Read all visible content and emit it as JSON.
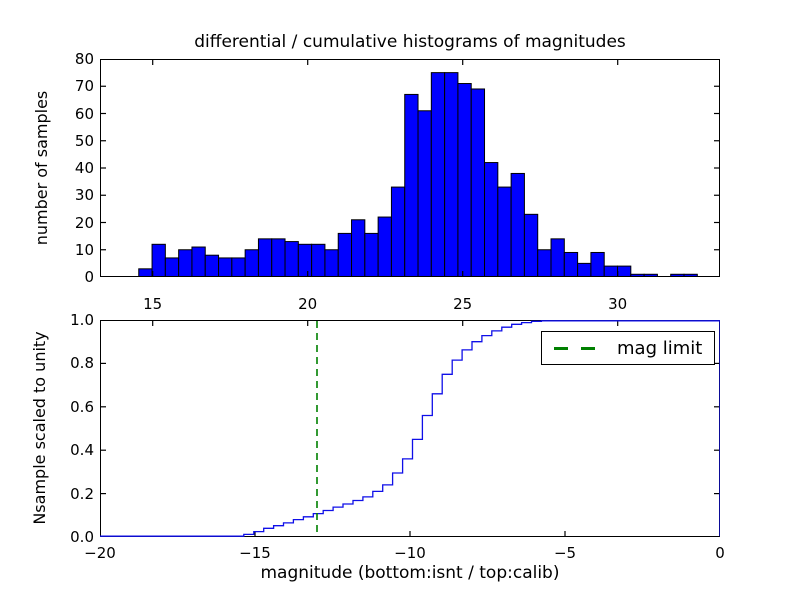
{
  "figure": {
    "background_color": "#ffffff",
    "accent_blue": "#0000ff",
    "accent_green": "#008000"
  },
  "chart_data": [
    {
      "type": "bar",
      "subtype": "differential histogram (top subplot)",
      "title": "differential / cumulative histograms of magnitudes",
      "xlabel": "",
      "ylabel": "number of samples",
      "x_axis_scale": "calib magnitude",
      "xlim": [
        13.3,
        33.3
      ],
      "ylim": [
        0,
        80
      ],
      "grid": false,
      "xticks": {
        "values": [
          15,
          20,
          25,
          30
        ],
        "labels": [
          "15",
          "20",
          "25",
          "30"
        ]
      },
      "yticks": {
        "values": [
          0,
          10,
          20,
          30,
          40,
          50,
          60,
          70,
          80
        ],
        "labels": [
          "0",
          "10",
          "20",
          "30",
          "40",
          "50",
          "60",
          "70",
          "80"
        ]
      },
      "bin_start": 14.55,
      "bin_width": 0.429,
      "bar_fill_color": "#0000ff",
      "bar_edge_color": "#000000",
      "values": [
        3,
        12,
        7,
        10,
        11,
        8,
        7,
        7,
        10,
        14,
        14,
        13,
        12,
        12,
        10,
        16,
        21,
        16,
        22,
        33,
        67,
        61,
        75,
        75,
        71,
        69,
        42,
        33,
        38,
        23,
        10,
        14,
        9,
        5,
        9,
        4,
        4,
        1,
        1,
        0,
        1,
        1
      ]
    },
    {
      "type": "line",
      "subtype": "cumulative step histogram scaled to unity (bottom subplot)",
      "xlabel": "magnitude (bottom:isnt / top:calib)",
      "ylabel": "Nsample scaled to unity",
      "x_axis_scale": "isnt magnitude",
      "xlim": [
        -20,
        0
      ],
      "ylim": [
        0.0,
        1.0
      ],
      "grid": false,
      "xticks": {
        "values": [
          -20,
          -15,
          -10,
          -5,
          0
        ],
        "labels": [
          "−20",
          "−15",
          "−10",
          "−5",
          "0"
        ]
      },
      "yticks": {
        "values": [
          0.0,
          0.2,
          0.4,
          0.6,
          0.8,
          1.0
        ],
        "labels": [
          "0.0",
          "0.2",
          "0.4",
          "0.6",
          "0.8",
          "1.0"
        ]
      },
      "top_xticks": {
        "values": [
          15,
          20,
          25,
          30
        ],
        "labels": [
          "15",
          "20",
          "25",
          "30"
        ],
        "scale": "calib",
        "xlim": [
          13.3,
          33.3
        ]
      },
      "line_color": "#0f0fe8",
      "curve_start": [
        -20,
        0.0
      ],
      "steps": [
        [
          -15.36,
          0.012
        ],
        [
          -15.04,
          0.025
        ],
        [
          -14.72,
          0.04
        ],
        [
          -14.4,
          0.052
        ],
        [
          -14.08,
          0.065
        ],
        [
          -13.76,
          0.08
        ],
        [
          -13.44,
          0.093
        ],
        [
          -13.12,
          0.108
        ],
        [
          -12.8,
          0.122
        ],
        [
          -12.48,
          0.138
        ],
        [
          -12.16,
          0.152
        ],
        [
          -11.84,
          0.168
        ],
        [
          -11.52,
          0.185
        ],
        [
          -11.2,
          0.21
        ],
        [
          -10.88,
          0.24
        ],
        [
          -10.56,
          0.295
        ],
        [
          -10.24,
          0.36
        ],
        [
          -9.92,
          0.45
        ],
        [
          -9.6,
          0.56
        ],
        [
          -9.28,
          0.66
        ],
        [
          -8.96,
          0.75
        ],
        [
          -8.64,
          0.815
        ],
        [
          -8.32,
          0.862
        ],
        [
          -8.0,
          0.9
        ],
        [
          -7.68,
          0.928
        ],
        [
          -7.36,
          0.95
        ],
        [
          -7.04,
          0.967
        ],
        [
          -6.72,
          0.98
        ],
        [
          -6.4,
          0.988
        ],
        [
          -6.08,
          0.994
        ],
        [
          -5.76,
          0.997
        ],
        [
          -5.44,
          0.999
        ],
        [
          -5.12,
          1.0
        ]
      ],
      "curve_end": [
        0,
        1.0
      ],
      "mag_limit_line": {
        "x": -13.0,
        "color": "#008000",
        "style": "dashed",
        "orientation": "vertical"
      },
      "legend": {
        "label": "mag limit",
        "position": "upper right",
        "sample_color": "#008000",
        "sample_style": "dashed"
      }
    }
  ]
}
